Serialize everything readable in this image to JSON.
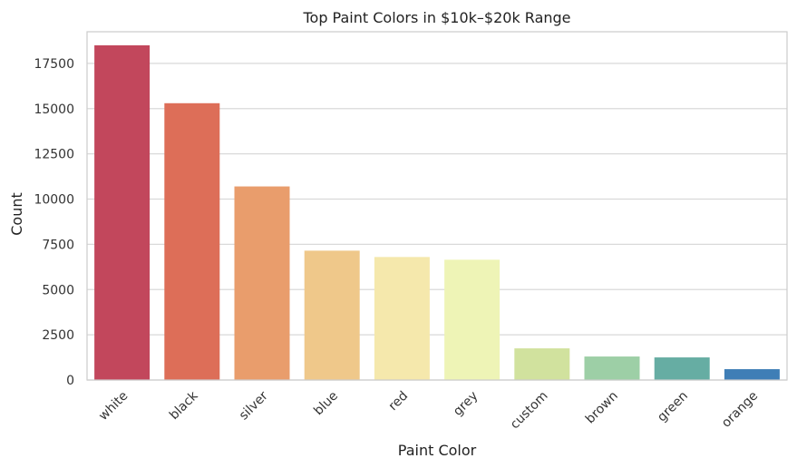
{
  "chart_data": {
    "type": "bar",
    "title": "Top Paint Colors in $10k–$20k Range",
    "xlabel": "Paint Color",
    "ylabel": "Count",
    "categories": [
      "white",
      "black",
      "silver",
      "blue",
      "red",
      "grey",
      "custom",
      "brown",
      "green",
      "orange"
    ],
    "values": [
      18500,
      15300,
      10700,
      7150,
      6800,
      6650,
      1750,
      1300,
      1250,
      600
    ],
    "colors": [
      "#c2475c",
      "#dd6e58",
      "#e99d6c",
      "#efc88a",
      "#f5e8ac",
      "#eef4b6",
      "#d1e29e",
      "#9dcfa6",
      "#66ada3",
      "#3f7eb6"
    ],
    "ylim": [
      0,
      19250
    ],
    "yticks": [
      0,
      2500,
      5000,
      7500,
      10000,
      12500,
      15000,
      17500
    ],
    "grid": true,
    "legend": false
  }
}
